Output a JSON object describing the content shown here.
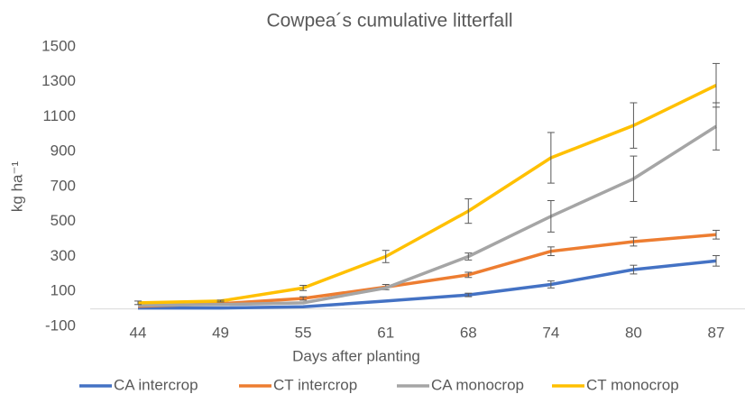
{
  "chart_data": {
    "type": "line",
    "title": "Cowpea´s cumulative litterfall",
    "x_label": "Days after planting",
    "y_label": "kg ha⁻¹",
    "categories": [
      "44",
      "49",
      "55",
      "61",
      "68",
      "74",
      "80",
      "87"
    ],
    "ylim": [
      -100,
      1500
    ],
    "yticks": [
      -100,
      100,
      300,
      500,
      700,
      900,
      1100,
      1300,
      1500
    ],
    "legend": "bottom",
    "series": [
      {
        "name": "CA intercrop",
        "color": "#4472c4",
        "values": [
          5,
          5,
          12,
          45,
          80,
          140,
          225,
          275
        ],
        "errors": [
          0,
          0,
          0,
          0,
          10,
          20,
          25,
          30
        ]
      },
      {
        "name": "CT intercrop",
        "color": "#ed7d31",
        "values": [
          15,
          30,
          60,
          125,
          195,
          330,
          385,
          425
        ],
        "errors": [
          0,
          0,
          10,
          15,
          15,
          25,
          25,
          25
        ]
      },
      {
        "name": "CA monocrop",
        "color": "#a5a5a5",
        "values": [
          20,
          25,
          35,
          120,
          300,
          530,
          745,
          1045
        ],
        "errors": [
          0,
          0,
          0,
          0,
          20,
          90,
          130,
          135
        ]
      },
      {
        "name": "CT monocrop",
        "color": "#ffc000",
        "values": [
          35,
          45,
          120,
          300,
          560,
          865,
          1050,
          1280
        ],
        "errors": [
          10,
          5,
          15,
          35,
          70,
          145,
          130,
          125
        ]
      }
    ]
  }
}
